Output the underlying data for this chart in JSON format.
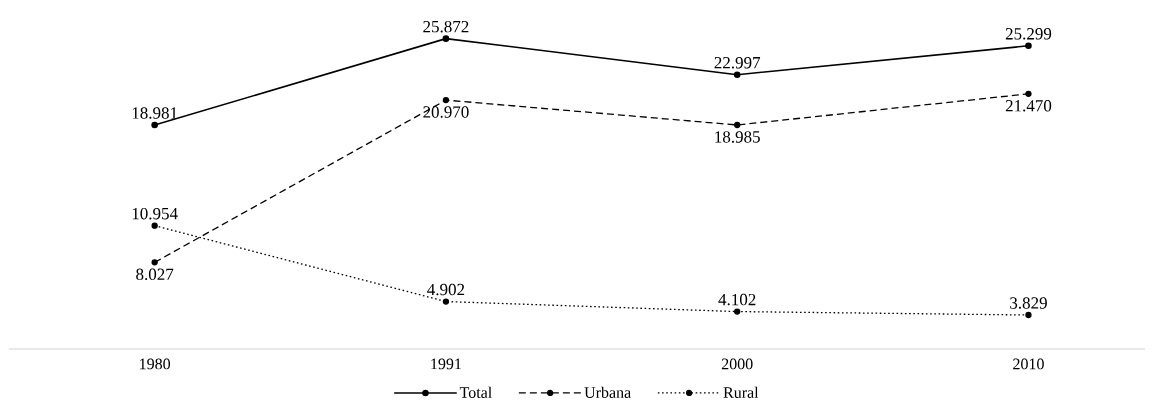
{
  "chart_data": {
    "type": "line",
    "categories": [
      "1980",
      "1991",
      "2000",
      "2010"
    ],
    "marker": "circle",
    "legend": "bottom",
    "grid": false,
    "series": [
      {
        "name": "Total",
        "color": "#000000",
        "line_style": "solid",
        "values": [
          18.981,
          25.872,
          22.997,
          25.299
        ],
        "value_labels": [
          "18.981",
          "25.872",
          "22.997",
          "25.299"
        ]
      },
      {
        "name": "Urbana",
        "color": "#000000",
        "line_style": "dashed",
        "values": [
          8.027,
          20.97,
          18.985,
          21.47
        ],
        "value_labels": [
          "8.027",
          "20.970",
          "18.985",
          "21.470"
        ]
      },
      {
        "name": "Rural",
        "color": "#000000",
        "line_style": "dotted",
        "values": [
          10.954,
          4.902,
          4.102,
          3.829
        ],
        "value_labels": [
          "10.954",
          "4.902",
          "4.102",
          "3.829"
        ]
      }
    ]
  }
}
